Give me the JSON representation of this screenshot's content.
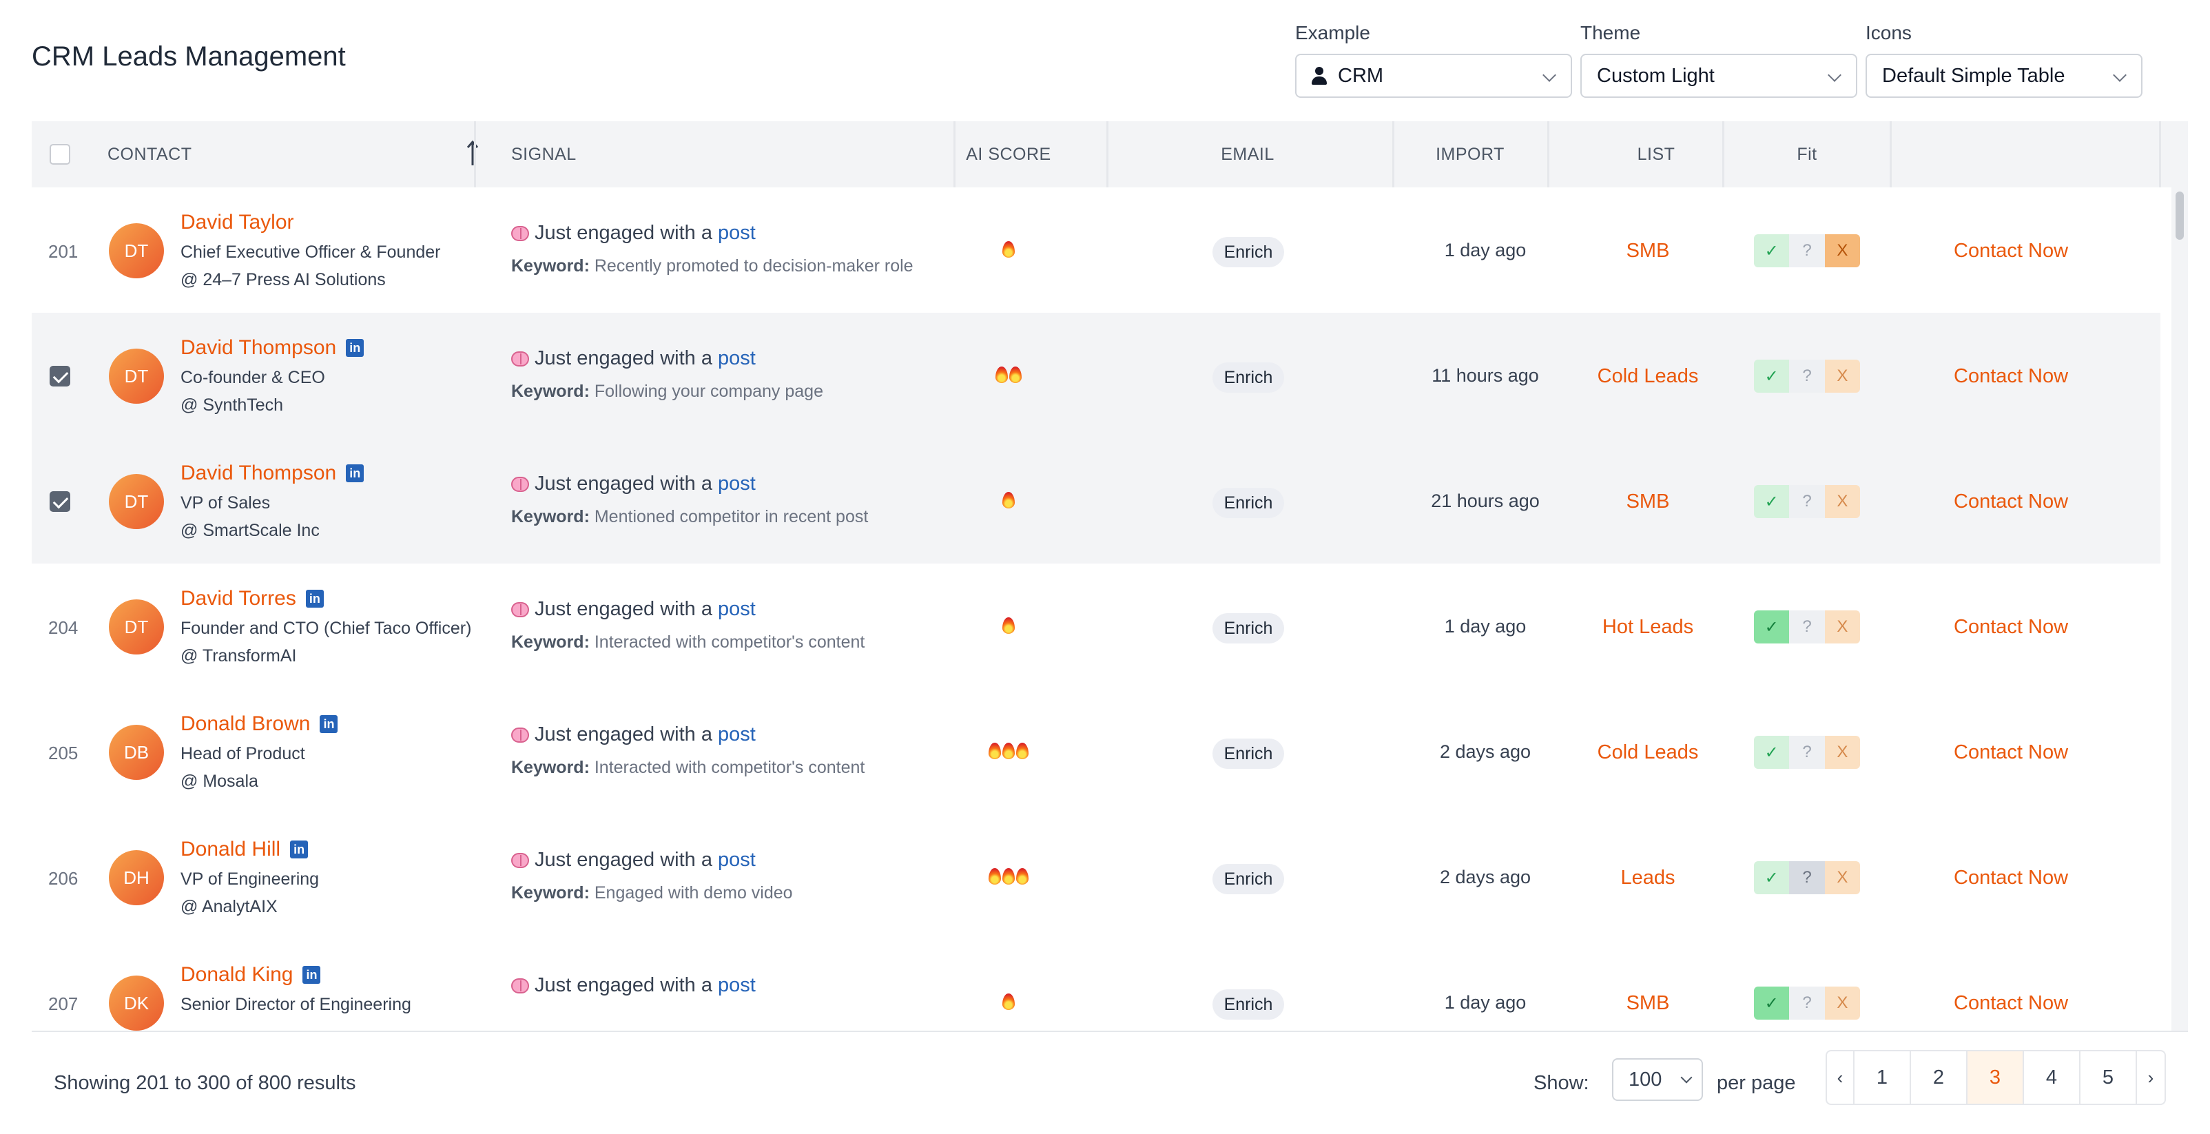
{
  "header": {
    "title": "CRM Leads Management"
  },
  "selectors": {
    "example": {
      "label": "Example",
      "value": "CRM"
    },
    "theme": {
      "label": "Theme",
      "value": "Custom Light"
    },
    "icons": {
      "label": "Icons",
      "value": "Default Simple Table"
    }
  },
  "columns": {
    "contact": "CONTACT",
    "signal": "SIGNAL",
    "ai_score": "AI SCORE",
    "email": "EMAIL",
    "import": "IMPORT",
    "list": "LIST",
    "fit": "Fit"
  },
  "common": {
    "signal_prefix": "Just engaged with a",
    "signal_link": "post",
    "keyword_label": "Keyword:",
    "enrich_label": "Enrich",
    "contact_now_label": "Contact Now",
    "fit_yes": "✓",
    "fit_maybe": "?",
    "fit_no": "X",
    "linkedin_glyph": "in"
  },
  "rows": [
    {
      "num": "201",
      "selected": false,
      "initials": "DT",
      "name": "David Taylor",
      "linkedin": false,
      "role": "Chief Executive Officer & Founder",
      "company": "@ 24–7 Press AI Solutions",
      "keyword": "Recently promoted to decision-maker role",
      "score": 1,
      "import": "1 day ago",
      "list": "SMB",
      "fit": "no"
    },
    {
      "num": "",
      "selected": true,
      "initials": "DT",
      "name": "David Thompson",
      "linkedin": true,
      "role": "Co-founder & CEO",
      "company": "@ SynthTech",
      "keyword": "Following your company page",
      "score": 2,
      "import": "11 hours ago",
      "list": "Cold Leads",
      "fit": "none"
    },
    {
      "num": "",
      "selected": true,
      "initials": "DT",
      "name": "David Thompson",
      "linkedin": true,
      "role": "VP of Sales",
      "company": "@ SmartScale Inc",
      "keyword": "Mentioned competitor in recent post",
      "score": 1,
      "import": "21 hours ago",
      "list": "SMB",
      "fit": "none"
    },
    {
      "num": "204",
      "selected": false,
      "initials": "DT",
      "name": "David Torres",
      "linkedin": true,
      "role": "Founder and CTO (Chief Taco Officer)",
      "company": "@ TransformAI",
      "keyword": "Interacted with competitor's content",
      "score": 1,
      "import": "1 day ago",
      "list": "Hot Leads",
      "fit": "yes"
    },
    {
      "num": "205",
      "selected": false,
      "initials": "DB",
      "name": "Donald Brown",
      "linkedin": true,
      "role": "Head of Product",
      "company": "@ Mosala",
      "keyword": "Interacted with competitor's content",
      "score": 3,
      "import": "2 days ago",
      "list": "Cold Leads",
      "fit": "none"
    },
    {
      "num": "206",
      "selected": false,
      "initials": "DH",
      "name": "Donald Hill",
      "linkedin": true,
      "role": "VP of Engineering",
      "company": "@ AnalytAIX",
      "keyword": "Engaged with demo video",
      "score": 3,
      "import": "2 days ago",
      "list": "Leads",
      "fit": "maybe"
    },
    {
      "num": "207",
      "selected": false,
      "initials": "DK",
      "name": "Donald King",
      "linkedin": true,
      "role": "Senior Director of Engineering",
      "company": "",
      "keyword": "",
      "score": 1,
      "import": "1 day ago",
      "list": "SMB",
      "fit": "yes"
    }
  ],
  "footer": {
    "results_text": "Showing 201 to 300 of 800 results",
    "show_label": "Show:",
    "per_page_value": "100",
    "per_page_label": "per page",
    "pages": [
      "1",
      "2",
      "3",
      "4",
      "5"
    ],
    "current_page": "3",
    "prev": "‹",
    "next": "›"
  }
}
